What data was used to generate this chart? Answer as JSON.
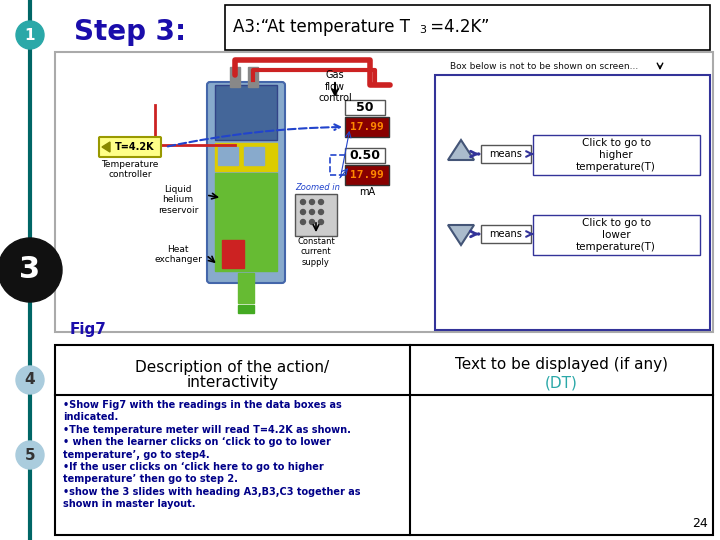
{
  "bg_color": "#ffffff",
  "title_step": "Step 3:",
  "title_step_color": "#1a0dab",
  "teal_line_color": "#006666",
  "circle1_color": "#2aa8a8",
  "circle3_color": "#111111",
  "circle4_color": "#aaccdd",
  "circle5_color": "#aaccdd",
  "fig7_label": "Fig7",
  "desc_header1": "Description of the action/",
  "desc_header2": "interactivity",
  "desc_text": "•Show Fig7 with the readings in the data boxes as\nindicated.\n•The temperature meter will read T=4.2K as shown.\n• when the learner clicks on ‘click to go to lower\ntemperature’, go to step4.\n•If the user clicks on ‘click here to go to higher\ntemperature’ then go to step 2.\n•show the 3 slides with heading A3,B3,C3 together as\nshown in master layout.",
  "dt_header1": "Text to be displayed (if any)",
  "dt_header2": "(DT)",
  "page_num": "24",
  "gas_flow_label": "Gas\nflow\ncontrol",
  "temp_label": "T=4.2K",
  "temp_controller_label": "Temperature\ncontroller",
  "liquid_he_label": "Liquid\nhelium\nreservoir",
  "heat_ex_label": "Heat\nexchanger",
  "const_curr_label": "Constant\ncurrent\nsupply",
  "box_note": "Box below is not to be shown on screen...",
  "click_higher": "Click to go to\nhigher\ntemperature(T)",
  "click_lower": "Click to go to\nlower\ntemperature(T)",
  "means_label": "means",
  "val_50": "50",
  "val_050": "0.50",
  "val_ma": "mA",
  "zoomed_in": "Zoomed in"
}
